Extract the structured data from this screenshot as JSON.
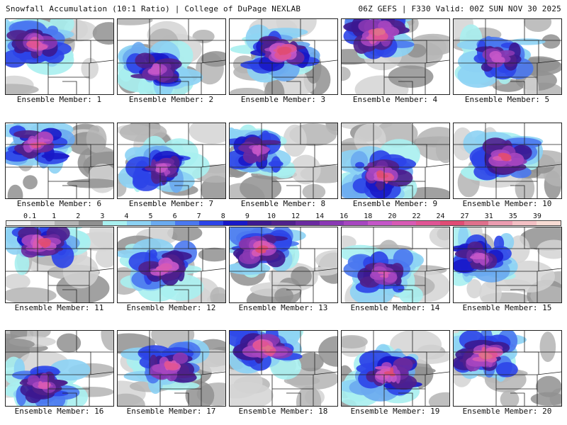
{
  "header": {
    "left": "Snowfall Accumulation (10:1 Ratio) | College of DuPage NEXLAB",
    "right": "06Z GEFS | F330 Valid: 00Z SUN NOV 30 2025"
  },
  "colorbar": {
    "labels": [
      "0.1",
      "1",
      "2",
      "3",
      "4",
      "5",
      "6",
      "7",
      "8",
      "9",
      "10",
      "12",
      "14",
      "16",
      "18",
      "20",
      "22",
      "24",
      "27",
      "31",
      "35",
      "39"
    ],
    "colors": [
      "#f0f0f0",
      "#d4d4d4",
      "#b4b4b4",
      "#909090",
      "#a8f0f0",
      "#8cd2f4",
      "#6aaaf0",
      "#4a78f0",
      "#2c44e8",
      "#1818c8",
      "#3c1890",
      "#50208c",
      "#6a2aa0",
      "#8a38b4",
      "#a646c0",
      "#c456c8",
      "#d85ab4",
      "#e05494",
      "#e04c74",
      "#e0708c",
      "#ec9cb0",
      "#f4c0c4",
      "#f8dcd4"
    ]
  },
  "members": [
    {
      "caption": "Ensemble Member: 1",
      "intensity": 0.78
    },
    {
      "caption": "Ensemble Member: 2",
      "intensity": 0.62
    },
    {
      "caption": "Ensemble Member: 3",
      "intensity": 0.86
    },
    {
      "caption": "Ensemble Member: 4",
      "intensity": 0.9
    },
    {
      "caption": "Ensemble Member: 5",
      "intensity": 0.55
    },
    {
      "caption": "Ensemble Member: 6",
      "intensity": 0.72
    },
    {
      "caption": "Ensemble Member: 7",
      "intensity": 0.6
    },
    {
      "caption": "Ensemble Member: 8",
      "intensity": 0.58
    },
    {
      "caption": "Ensemble Member: 9",
      "intensity": 0.84
    },
    {
      "caption": "Ensemble Member: 10",
      "intensity": 0.8
    },
    {
      "caption": "Ensemble Member: 11",
      "intensity": 0.82
    },
    {
      "caption": "Ensemble Member: 12",
      "intensity": 0.68
    },
    {
      "caption": "Ensemble Member: 13",
      "intensity": 0.8
    },
    {
      "caption": "Ensemble Member: 14",
      "intensity": 0.66
    },
    {
      "caption": "Ensemble Member: 15",
      "intensity": 0.62
    },
    {
      "caption": "Ensemble Member: 16",
      "intensity": 0.64
    },
    {
      "caption": "Ensemble Member: 17",
      "intensity": 0.76
    },
    {
      "caption": "Ensemble Member: 18",
      "intensity": 0.92
    },
    {
      "caption": "Ensemble Member: 19",
      "intensity": 0.82
    },
    {
      "caption": "Ensemble Member: 20",
      "intensity": 0.88
    }
  ]
}
